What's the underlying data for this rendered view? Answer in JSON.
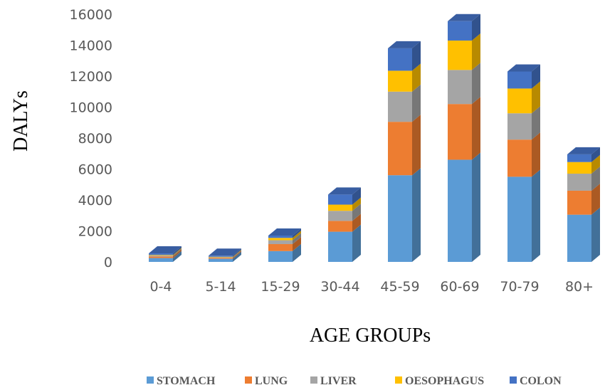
{
  "chart_data": {
    "type": "bar",
    "stacked": true,
    "three_d": true,
    "title": "",
    "xlabel": "AGE GROUPs",
    "ylabel": "DALYs",
    "ylim": [
      0,
      16000
    ],
    "yticks": [
      0,
      2000,
      4000,
      6000,
      8000,
      10000,
      12000,
      14000,
      16000
    ],
    "grid": false,
    "legend_position": "bottom",
    "categories": [
      "0-4",
      "5-14",
      "15-29",
      "30-44",
      "45-59",
      "60-69",
      "70-79",
      "80+"
    ],
    "series": [
      {
        "name": "STOMACH",
        "color": "#5b9bd5",
        "values": [
          250,
          200,
          700,
          1950,
          5600,
          6600,
          5500,
          3050
        ]
      },
      {
        "name": "LUNG",
        "color": "#ed7d31",
        "values": [
          100,
          60,
          450,
          700,
          3450,
          3600,
          2400,
          1550
        ]
      },
      {
        "name": "LIVER",
        "color": "#a5a5a5",
        "values": [
          60,
          40,
          250,
          650,
          1950,
          2200,
          1700,
          1100
        ]
      },
      {
        "name": "OESOPHAGUS",
        "color": "#ffc000",
        "values": [
          40,
          30,
          150,
          400,
          1350,
          1900,
          1600,
          750
        ]
      },
      {
        "name": "COLON",
        "color": "#4472c4",
        "values": [
          100,
          70,
          150,
          650,
          1450,
          1250,
          1100,
          500
        ]
      }
    ]
  }
}
